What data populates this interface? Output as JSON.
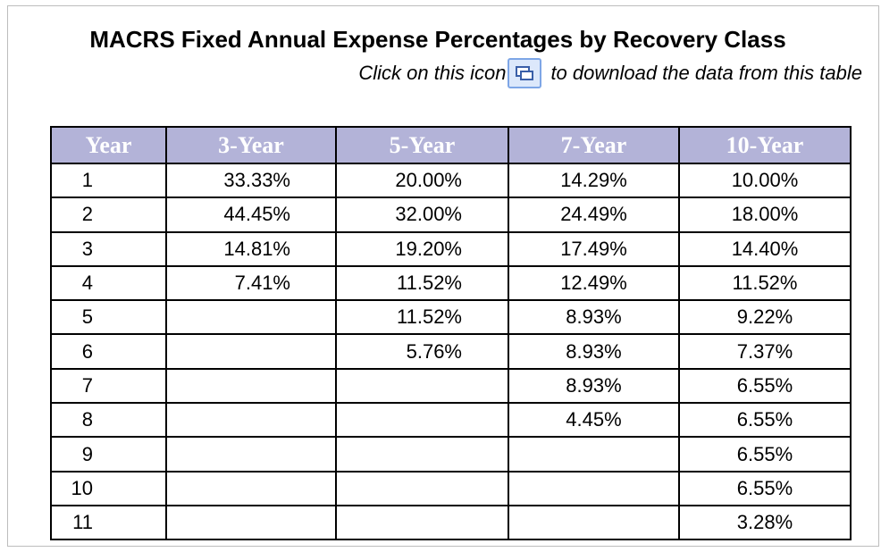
{
  "header": {
    "title": "MACRS Fixed Annual Expense Percentages by Recovery Class",
    "subtitle_before": "Click on this icon",
    "subtitle_after": "to download the data from this table"
  },
  "table": {
    "columns": [
      "Year",
      "3-Year",
      "5-Year",
      "7-Year",
      "10-Year"
    ],
    "rows": [
      [
        "1",
        "33.33%",
        "20.00%",
        "14.29%",
        "10.00%"
      ],
      [
        "2",
        "44.45%",
        "32.00%",
        "24.49%",
        "18.00%"
      ],
      [
        "3",
        "14.81%",
        "19.20%",
        "17.49%",
        "14.40%"
      ],
      [
        "4",
        "7.41%",
        "11.52%",
        "12.49%",
        "11.52%"
      ],
      [
        "5",
        null,
        "11.52%",
        "8.93%",
        "9.22%"
      ],
      [
        "6",
        null,
        "5.76%",
        "8.93%",
        "7.37%"
      ],
      [
        "7",
        null,
        null,
        "8.93%",
        "6.55%"
      ],
      [
        "8",
        null,
        null,
        "4.45%",
        "6.55%"
      ],
      [
        "9",
        null,
        null,
        null,
        "6.55%"
      ],
      [
        "10",
        null,
        null,
        null,
        "6.55%"
      ],
      [
        "11",
        null,
        null,
        null,
        "3.28%"
      ]
    ]
  }
}
